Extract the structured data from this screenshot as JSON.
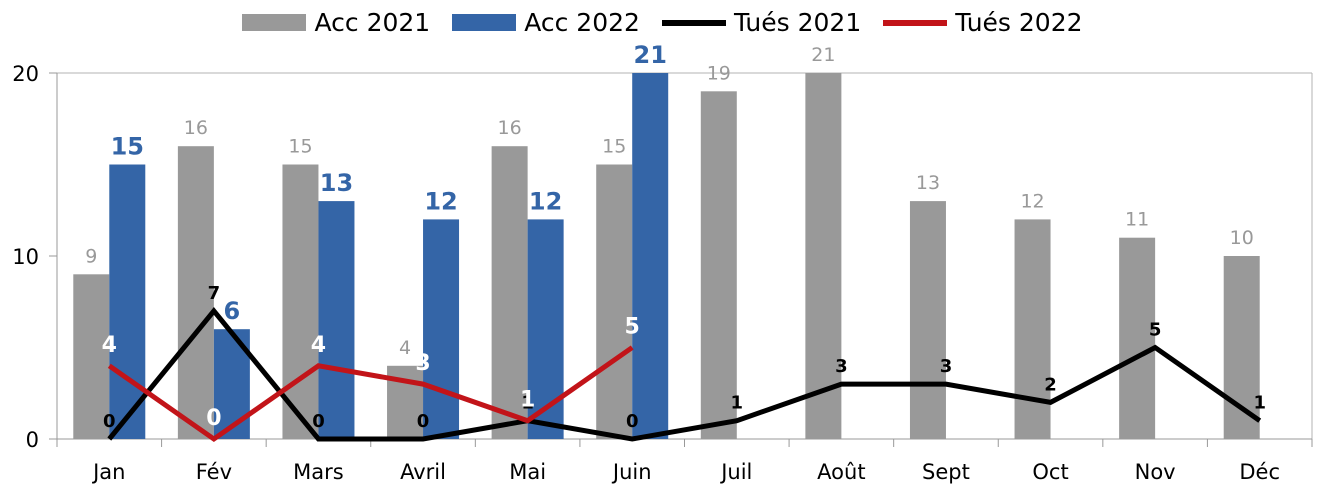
{
  "chart_data": {
    "type": "bar",
    "categories": [
      "Jan",
      "Fév",
      "Mars",
      "Avril",
      "Mai",
      "Juin",
      "Juil",
      "Août",
      "Sept",
      "Oct",
      "Nov",
      "Déc"
    ],
    "ylim": [
      0,
      20
    ],
    "yticks": [
      0,
      10,
      20
    ],
    "grid": false,
    "legend_position": "top",
    "series": [
      {
        "name": "Acc 2021",
        "kind": "bar",
        "color": "#999999",
        "label_color": "#999999",
        "values": [
          9,
          16,
          15,
          4,
          16,
          15,
          19,
          21,
          13,
          12,
          11,
          10
        ]
      },
      {
        "name": "Acc 2022",
        "kind": "bar",
        "color": "#3465a7",
        "label_color": "#3465a7",
        "values": [
          15,
          6,
          13,
          12,
          12,
          21,
          null,
          null,
          null,
          null,
          null,
          null
        ]
      },
      {
        "name": "Tués 2021",
        "kind": "line",
        "color": "#000000",
        "label_color": "#000000",
        "values": [
          0,
          7,
          0,
          0,
          1,
          0,
          1,
          3,
          3,
          2,
          5,
          1
        ]
      },
      {
        "name": "Tués 2022",
        "kind": "line",
        "color": "#c21419",
        "label_color": "#ffffff",
        "values": [
          4,
          0,
          4,
          3,
          1,
          5,
          null,
          null,
          null,
          null,
          null,
          null
        ]
      }
    ]
  }
}
